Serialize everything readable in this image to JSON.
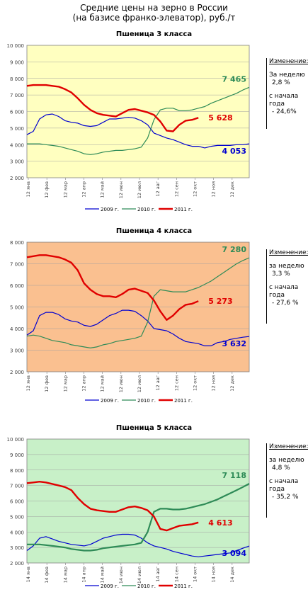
{
  "header": {
    "line1": "Средние цены на зерно в России",
    "line2": "(на базисе франко-элеватор), руб./т"
  },
  "colors": {
    "s2009": "#0000d0",
    "s2010": "#2e8b57",
    "s2011": "#e00000"
  },
  "legend": {
    "s2009": "2009 г.",
    "s2010": "2010 г.",
    "s2011": "2011 г."
  },
  "chart_data": [
    {
      "type": "line",
      "title": "Пшеница 3 класса",
      "background": "#ffffc0",
      "ylim": [
        2000,
        10000
      ],
      "yticks": [
        "2 000",
        "3 000",
        "4 000",
        "5 000",
        "6 000",
        "7 000",
        "8 000",
        "9 000",
        "10 000"
      ],
      "xticks": [
        "12 янв",
        "12 фев",
        "12 мар",
        "12 апр",
        "12 май",
        "12 июн",
        "12 июл",
        "12 авг",
        "12 сен",
        "12 окт",
        "12 ноя",
        "12 дек"
      ],
      "series": [
        {
          "name": "2009 г.",
          "key": "s2009",
          "values": [
            4600,
            4800,
            5550,
            5800,
            5850,
            5700,
            5450,
            5350,
            5300,
            5150,
            5100,
            5150,
            5350,
            5550,
            5550,
            5600,
            5650,
            5600,
            5450,
            5200,
            4700,
            4550,
            4400,
            4300,
            4150,
            4000,
            3900,
            3900,
            3800,
            3900,
            3950,
            3950,
            3950,
            4000,
            4000,
            4050
          ]
        },
        {
          "name": "2010 г.",
          "key": "s2010",
          "values": [
            4050,
            4050,
            4050,
            4000,
            3950,
            3900,
            3800,
            3700,
            3600,
            3450,
            3400,
            3450,
            3550,
            3600,
            3650,
            3650,
            3700,
            3750,
            3850,
            4400,
            5500,
            6100,
            6200,
            6200,
            6050,
            6050,
            6100,
            6200,
            6300,
            6500,
            6650,
            6800,
            6950,
            7100,
            7300,
            7465
          ]
        },
        {
          "name": "2011 г.",
          "key": "s2011",
          "values": [
            7550,
            7600,
            7600,
            7600,
            7550,
            7500,
            7350,
            7150,
            6800,
            6400,
            6100,
            5900,
            5800,
            5750,
            5700,
            5900,
            6100,
            6150,
            6050,
            5950,
            5800,
            5400,
            4850,
            4800,
            5200,
            5450,
            5500,
            5628
          ]
        }
      ],
      "label2010": "7 465",
      "label2011": "5 628",
      "label2009": "4 053",
      "side": {
        "title": "Изменение:",
        "week_label": "За неделю",
        "week": "2,8 %",
        "start_label1": "с начала",
        "start_label2": "года",
        "start": "- 24,6%"
      }
    },
    {
      "type": "line",
      "title": "Пшеница 4 класса",
      "background": "#fac090",
      "ylim": [
        2000,
        8000
      ],
      "yticks": [
        "2 000",
        "3 000",
        "4 000",
        "5 000",
        "6 000",
        "7 000",
        "8 000"
      ],
      "xticks": [
        "12 янв",
        "12 фев",
        "12 мар",
        "12 апр",
        "12 май",
        "12 июн",
        "12 июл",
        "12 авг",
        "12 сен",
        "12 окт",
        "12 ноя",
        "12 дек"
      ],
      "series": [
        {
          "name": "2009 г.",
          "key": "s2009",
          "values": [
            3700,
            3900,
            4600,
            4750,
            4750,
            4650,
            4450,
            4350,
            4300,
            4150,
            4100,
            4200,
            4400,
            4600,
            4700,
            4850,
            4850,
            4800,
            4600,
            4350,
            4000,
            3950,
            3900,
            3750,
            3550,
            3400,
            3350,
            3300,
            3200,
            3200,
            3350,
            3400,
            3500,
            3550,
            3600,
            3632
          ]
        },
        {
          "name": "2010 г.",
          "key": "s2010",
          "values": [
            3650,
            3700,
            3650,
            3550,
            3450,
            3400,
            3350,
            3250,
            3200,
            3150,
            3100,
            3150,
            3250,
            3300,
            3400,
            3450,
            3500,
            3550,
            3650,
            4300,
            5500,
            5800,
            5750,
            5700,
            5700,
            5700,
            5800,
            5900,
            6050,
            6200,
            6400,
            6600,
            6800,
            7000,
            7150,
            7280
          ]
        },
        {
          "name": "2011 г.",
          "key": "s2011",
          "values": [
            7300,
            7350,
            7400,
            7400,
            7350,
            7300,
            7200,
            7050,
            6700,
            6100,
            5800,
            5600,
            5500,
            5500,
            5450,
            5600,
            5800,
            5850,
            5750,
            5650,
            5300,
            4800,
            4400,
            4600,
            4900,
            5100,
            5150,
            5273
          ]
        }
      ],
      "label2010": "7 280",
      "label2011": "5 273",
      "label2009": "3 632",
      "side": {
        "title": "Изменение:",
        "week_label": "за неделю",
        "week": "3,3 %",
        "start_label1": "с начала",
        "start_label2": "года",
        "start": "- 27,6 %"
      }
    },
    {
      "type": "line",
      "title": "Пшеница 5 класса",
      "background": "#c8f0c8",
      "ylim": [
        2000,
        10000
      ],
      "yticks": [
        "2 000",
        "3 000",
        "4 000",
        "5 000",
        "6 000",
        "7 000",
        "8 000",
        "9 000",
        "10 000"
      ],
      "xticks": [
        "14 янв",
        "14 фев",
        "14 мар",
        "14 апр",
        "14 май",
        "14 июн",
        "14 июл",
        "14 авг",
        "14 сен",
        "14 окт",
        "14 ноя",
        "14 дек"
      ],
      "series": [
        {
          "name": "2009 г.",
          "key": "s2009",
          "values": [
            2800,
            3100,
            3600,
            3700,
            3550,
            3400,
            3300,
            3200,
            3150,
            3100,
            3200,
            3400,
            3600,
            3700,
            3800,
            3850,
            3850,
            3800,
            3600,
            3300,
            3100,
            3000,
            2900,
            2750,
            2650,
            2550,
            2450,
            2400,
            2450,
            2500,
            2550,
            2600,
            2650,
            2800,
            2950,
            3094
          ]
        },
        {
          "name": "2010 г.",
          "key": "s2010",
          "values": [
            3200,
            3200,
            3200,
            3150,
            3100,
            3050,
            3000,
            2900,
            2850,
            2800,
            2800,
            2850,
            2950,
            3000,
            3050,
            3100,
            3150,
            3200,
            3300,
            4000,
            5300,
            5500,
            5500,
            5450,
            5450,
            5500,
            5600,
            5700,
            5800,
            5950,
            6100,
            6300,
            6500,
            6700,
            6900,
            7118
          ]
        },
        {
          "name": "2011 г.",
          "key": "s2011",
          "values": [
            7150,
            7200,
            7250,
            7200,
            7100,
            7000,
            6900,
            6700,
            6200,
            5800,
            5500,
            5400,
            5350,
            5300,
            5300,
            5450,
            5600,
            5650,
            5550,
            5400,
            5000,
            4200,
            4100,
            4250,
            4400,
            4450,
            4500,
            4613
          ]
        }
      ],
      "label2010": "7 118",
      "label2011": "4 613",
      "label2009": "3 094",
      "side": {
        "title": "Изменение:",
        "week_label": "за неделю",
        "week": "4,8 %",
        "start_label1": "с начала",
        "start_label2": "года",
        "start": "- 35,2 %"
      }
    }
  ]
}
